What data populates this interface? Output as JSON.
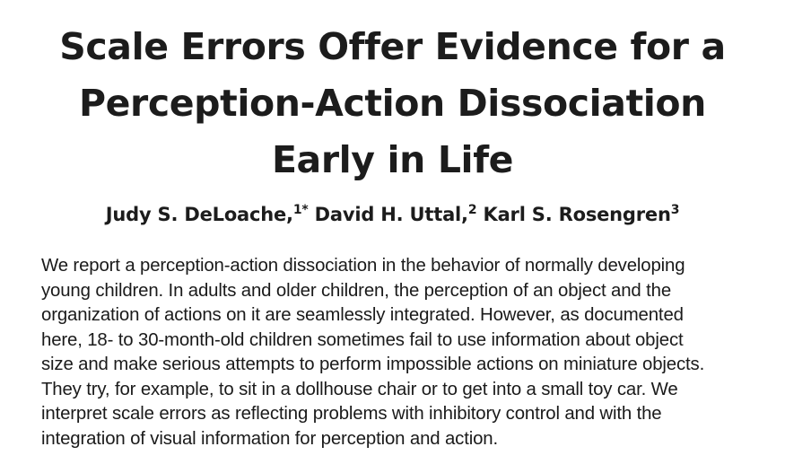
{
  "title": {
    "lines": [
      "Scale Errors Offer Evidence for a",
      "Perception-Action Dissociation",
      "Early in Life"
    ]
  },
  "authors": [
    {
      "name": "Judy S. DeLoache,",
      "sup": "1*"
    },
    {
      "name": "David H. Uttal,",
      "sup": "2"
    },
    {
      "name": "Karl S. Rosengren",
      "sup": "3"
    }
  ],
  "abstract": {
    "lines": [
      "We report a perception-action dissociation in the behavior of normally developing",
      "young children. In adults and older children, the perception of an object and the",
      "organization of actions on it are seamlessly integrated. However, as documented",
      "here, 18- to 30-month-old children sometimes fail to use information about object",
      "size and make serious attempts to perform impossible actions on miniature objects.",
      "They try, for example, to sit in a dollhouse chair or to get into a small toy car. We",
      "interpret scale errors as reflecting problems with inhibitory control and with the",
      "integration of visual information for perception and action."
    ]
  }
}
